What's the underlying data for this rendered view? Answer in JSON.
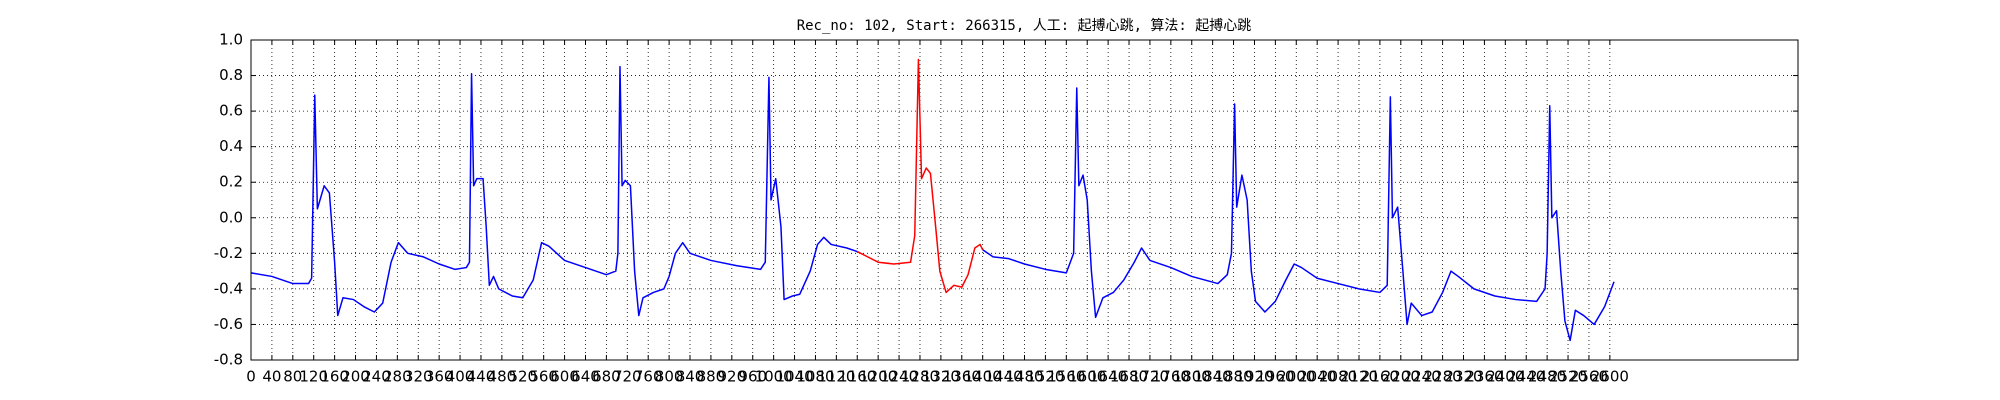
{
  "chart_data": {
    "type": "line",
    "title": "Rec_no: 102, Start: 266315, 人工: 起搏心跳, 算法: 起搏心跳",
    "xlim": [
      0,
      2960
    ],
    "xticks": [
      0,
      40,
      80,
      120,
      160,
      200,
      240,
      280,
      320,
      360,
      400,
      440,
      480,
      520,
      560,
      600,
      640,
      680,
      720,
      760,
      800,
      840,
      880,
      920,
      960,
      1000,
      1040,
      1080,
      1120,
      1160,
      1200,
      1240,
      1280,
      1320,
      1360,
      1400,
      1440,
      1480,
      1520,
      1560,
      1600,
      1640,
      1680,
      1720,
      1760,
      1800,
      1840,
      1880,
      1920,
      1960,
      2000,
      2040,
      2080,
      2120,
      2160,
      2200,
      2240,
      2280,
      2320,
      2360,
      2400,
      2440,
      2480,
      2520,
      2560,
      2600
    ],
    "ylim": [
      -0.8,
      1.0
    ],
    "yticks": [
      -0.8,
      -0.6,
      -0.4,
      -0.2,
      {
        "value": 0,
        "label": "0.0"
      },
      0.2,
      0.4,
      0.6,
      0.8,
      {
        "value": 1,
        "label": "1.0"
      }
    ],
    "grid": true,
    "series": [
      {
        "color": "#0000ff",
        "x": [
          0,
          40,
          80,
          110,
          116,
          122,
          127,
          140,
          150,
          160,
          166,
          176,
          196,
          216,
          236,
          252,
          268,
          282,
          300,
          330,
          360,
          390,
          412,
          418,
          422,
          426,
          432,
          444,
          450,
          456,
          464,
          474,
          500,
          520,
          540,
          556,
          570,
          600,
          640,
          680,
          698,
          702,
          706,
          710,
          716,
          726,
          734,
          742,
          750,
          770,
          790,
          800,
          812,
          826,
          840,
          880,
          930,
          975,
          984,
          991,
          995,
          1004,
          1014,
          1020,
          1036,
          1050,
          1070,
          1084,
          1096,
          1110,
          1140,
          1160
        ],
        "values": [
          -0.31,
          -0.33,
          -0.37,
          -0.37,
          -0.34,
          0.69,
          0.05,
          0.18,
          0.14,
          -0.25,
          -0.55,
          -0.45,
          -0.46,
          -0.5,
          -0.53,
          -0.48,
          -0.25,
          -0.14,
          -0.2,
          -0.22,
          -0.26,
          -0.29,
          -0.28,
          -0.25,
          0.81,
          0.18,
          0.22,
          0.22,
          -0.05,
          -0.38,
          -0.33,
          -0.4,
          -0.44,
          -0.45,
          -0.35,
          -0.14,
          -0.16,
          -0.24,
          -0.28,
          -0.32,
          -0.3,
          -0.2,
          0.85,
          0.18,
          0.21,
          0.18,
          -0.3,
          -0.55,
          -0.45,
          -0.42,
          -0.4,
          -0.33,
          -0.2,
          -0.14,
          -0.2,
          -0.24,
          -0.27,
          -0.29,
          -0.25,
          0.79,
          0.1,
          0.22,
          -0.05,
          -0.46,
          -0.44,
          -0.43,
          -0.3,
          -0.15,
          -0.11,
          -0.15,
          -0.17,
          -0.19
        ]
      },
      {
        "color": "#ff0000",
        "x": [
          1160,
          1180,
          1200,
          1230,
          1262,
          1270,
          1277,
          1283,
          1292,
          1300,
          1310,
          1318,
          1330,
          1345,
          1360,
          1372,
          1385,
          1395,
          1400
        ],
        "values": [
          -0.19,
          -0.22,
          -0.25,
          -0.26,
          -0.25,
          -0.1,
          0.89,
          0.22,
          0.28,
          0.25,
          -0.05,
          -0.3,
          -0.42,
          -0.38,
          -0.39,
          -0.32,
          -0.17,
          -0.15,
          -0.18
        ]
      },
      {
        "color": "#0000ff",
        "x": [
          1400,
          1420,
          1450,
          1480,
          1520,
          1560,
          1574,
          1580,
          1584,
          1592,
          1600,
          1608,
          1616,
          1630,
          1650,
          1670,
          1690,
          1704,
          1720,
          1760,
          1800,
          1850,
          1868,
          1876,
          1882,
          1886,
          1896,
          1906,
          1914,
          1922,
          1940,
          1960,
          1980,
          1996,
          2010,
          2040,
          2080,
          2120,
          2160,
          2174,
          2180,
          2184,
          2194,
          2204,
          2212,
          2220,
          2240,
          2260,
          2280,
          2296,
          2310,
          2340,
          2380,
          2420,
          2460,
          2476,
          2480,
          2485,
          2489,
          2498,
          2506,
          2514,
          2524,
          2534,
          2550,
          2570,
          2590,
          2608
        ],
        "values": [
          -0.18,
          -0.22,
          -0.23,
          -0.26,
          -0.29,
          -0.31,
          -0.2,
          0.73,
          0.18,
          0.24,
          0.1,
          -0.3,
          -0.56,
          -0.45,
          -0.42,
          -0.35,
          -0.25,
          -0.17,
          -0.24,
          -0.28,
          -0.33,
          -0.37,
          -0.32,
          -0.2,
          0.64,
          0.06,
          0.24,
          0.1,
          -0.3,
          -0.47,
          -0.53,
          -0.47,
          -0.35,
          -0.26,
          -0.28,
          -0.34,
          -0.37,
          -0.4,
          -0.42,
          -0.38,
          0.68,
          0.0,
          0.06,
          -0.3,
          -0.6,
          -0.48,
          -0.55,
          -0.53,
          -0.42,
          -0.3,
          -0.33,
          -0.4,
          -0.44,
          -0.46,
          -0.47,
          -0.4,
          -0.2,
          0.63,
          0.0,
          0.04,
          -0.3,
          -0.58,
          -0.69,
          -0.52,
          -0.55,
          -0.6,
          -0.5,
          -0.36
        ]
      }
    ]
  }
}
